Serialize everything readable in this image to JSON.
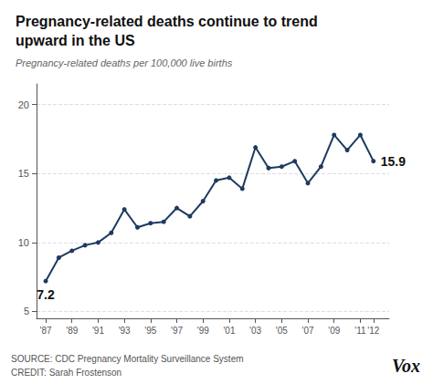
{
  "chart_data": {
    "type": "line",
    "title": "Pregnancy-related deaths continue to trend\nupward in the US",
    "subtitle": "Pregnancy-related deaths per 100,000 live births",
    "x": [
      1987,
      1988,
      1989,
      1990,
      1991,
      1992,
      1993,
      1994,
      1995,
      1996,
      1997,
      1998,
      1999,
      2000,
      2001,
      2002,
      2003,
      2004,
      2005,
      2006,
      2007,
      2008,
      2009,
      2010,
      2011,
      2012
    ],
    "values": [
      7.2,
      8.9,
      9.4,
      9.8,
      10.0,
      10.7,
      12.4,
      11.1,
      11.4,
      11.5,
      12.5,
      11.9,
      13.0,
      14.5,
      14.7,
      13.9,
      16.9,
      15.4,
      15.5,
      15.9,
      14.3,
      15.5,
      17.8,
      16.7,
      17.8,
      15.9
    ],
    "color": "#1e3a5f",
    "marker": "circle",
    "xlim": [
      1986.3,
      2013.2
    ],
    "xticks": [
      {
        "value": 1987,
        "label": "'87"
      },
      {
        "value": 1989,
        "label": "'89"
      },
      {
        "value": 1991,
        "label": "'91"
      },
      {
        "value": 1993,
        "label": "'93"
      },
      {
        "value": 1995,
        "label": "'95"
      },
      {
        "value": 1997,
        "label": "'97"
      },
      {
        "value": 1999,
        "label": "'99"
      },
      {
        "value": 2001,
        "label": "'01"
      },
      {
        "value": 2003,
        "label": "'03"
      },
      {
        "value": 2005,
        "label": "'05"
      },
      {
        "value": 2007,
        "label": "'07"
      },
      {
        "value": 2009,
        "label": "'09"
      },
      {
        "value": 2011,
        "label": "'11"
      },
      {
        "value": 2012,
        "label": "'12"
      }
    ],
    "ylim": [
      4.5,
      21.5
    ],
    "yticks": [
      5,
      10,
      15,
      20
    ],
    "grid": true,
    "annotations": [
      {
        "text": "7.2",
        "x": 1987,
        "y": 7.2
      },
      {
        "text": "15.9",
        "x": 2012,
        "y": 15.9
      },
      {
        "text": "SOURCE: CDC Pregnancy Mortality Surveillance System"
      },
      {
        "text": "CREDIT: Sarah Frostenson"
      },
      {
        "text": "Vox"
      }
    ]
  }
}
